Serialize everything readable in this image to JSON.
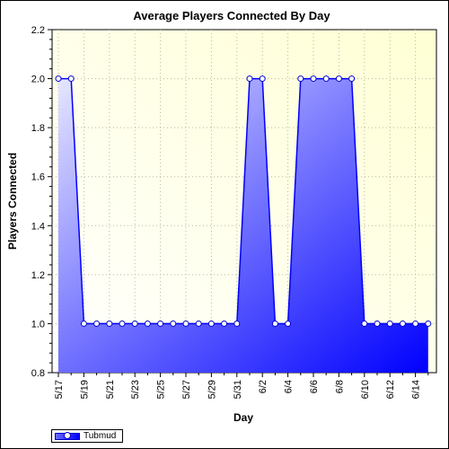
{
  "chart_data": {
    "type": "area",
    "title": "Average Players Connected By Day",
    "xlabel": "Day",
    "ylabel": "Players Connected",
    "ylim": [
      0.8,
      2.2
    ],
    "yticks": [
      "0.8",
      "1.0",
      "1.2",
      "1.4",
      "1.6",
      "1.8",
      "2.0",
      "2.2"
    ],
    "x_tick_labels": [
      "5/17",
      "5/19",
      "5/21",
      "5/23",
      "5/25",
      "5/27",
      "5/29",
      "5/31",
      "6/2",
      "6/4",
      "6/6",
      "6/8",
      "6/10",
      "6/12",
      "6/14"
    ],
    "grid": true,
    "legend_position": "bottom-left",
    "series": [
      {
        "name": "Tubmud",
        "color": "#0000ff",
        "x": [
          "5/17",
          "5/18",
          "5/19",
          "5/20",
          "5/21",
          "5/22",
          "5/23",
          "5/24",
          "5/25",
          "5/26",
          "5/27",
          "5/28",
          "5/29",
          "5/30",
          "5/31",
          "6/1",
          "6/2",
          "6/3",
          "6/4",
          "6/5",
          "6/6",
          "6/7",
          "6/8",
          "6/9",
          "6/10",
          "6/11",
          "6/12",
          "6/13",
          "6/14",
          "6/15"
        ],
        "values": [
          2.0,
          2.0,
          1.0,
          1.0,
          1.0,
          1.0,
          1.0,
          1.0,
          1.0,
          1.0,
          1.0,
          1.0,
          1.0,
          1.0,
          1.0,
          2.0,
          2.0,
          1.0,
          1.0,
          2.0,
          2.0,
          2.0,
          2.0,
          2.0,
          1.0,
          1.0,
          1.0,
          1.0,
          1.0,
          1.0
        ]
      }
    ]
  }
}
